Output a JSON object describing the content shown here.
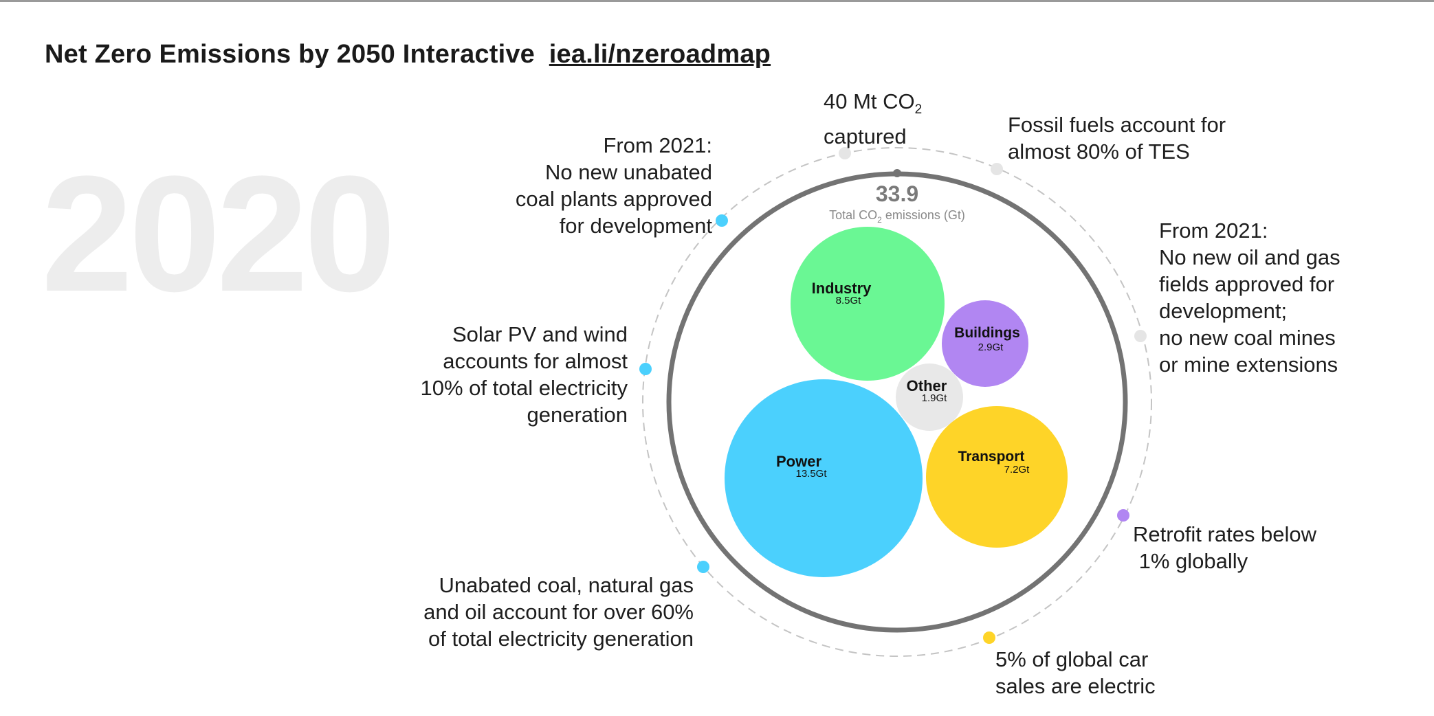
{
  "header": {
    "title": "Net Zero Emissions by 2050 Interactive",
    "link_text": "iea.li/nzeroadmap"
  },
  "year": "2020",
  "center": {
    "total_value": "33.9",
    "total_label_prefix": "Total CO",
    "total_label_sub": "2",
    "total_label_suffix": " emissions (Gt)"
  },
  "bubbles": [
    {
      "name": "Industry",
      "value_label": "8.5Gt",
      "value_gt": 8.5,
      "color": "#6af794"
    },
    {
      "name": "Buildings",
      "value_label": "2.9Gt",
      "value_gt": 2.9,
      "color": "#b186f2"
    },
    {
      "name": "Other",
      "value_label": "1.9Gt",
      "value_gt": 1.9,
      "color": "#e8e8e8"
    },
    {
      "name": "Power",
      "value_label": "13.5Gt",
      "value_gt": 13.5,
      "color": "#4bd0fd"
    },
    {
      "name": "Transport",
      "value_label": "7.2Gt",
      "value_gt": 7.2,
      "color": "#fed428"
    }
  ],
  "annotations": {
    "ccs": {
      "line1_prefix": "40 Mt CO",
      "line1_sub": "2",
      "line2": "captured",
      "dot_color": "#e5e5e5"
    },
    "fossil": {
      "lines": [
        "Fossil fuels account for",
        "almost 80% of TES"
      ],
      "dot_color": "#e5e5e5"
    },
    "coal_plants": {
      "lines": [
        "From 2021:",
        "No new unabated",
        "coal plants approved",
        "for development"
      ],
      "dot_color": "#4bd0fd"
    },
    "oil_gas": {
      "lines": [
        "From 2021:",
        "No new oil and gas",
        "fields approved for",
        "development;",
        "no new coal mines",
        "or mine extensions"
      ],
      "dot_color": "#e5e5e5"
    },
    "solar": {
      "lines": [
        "Solar PV and wind",
        "accounts for almost",
        "10% of total electricity",
        "generation"
      ],
      "dot_color": "#4bd0fd"
    },
    "retrofit": {
      "lines": [
        "Retrofit rates below",
        " 1% globally"
      ],
      "dot_color": "#b186f2"
    },
    "unabated": {
      "lines": [
        "Unabated coal, natural gas",
        "and oil account for over 60%",
        "of total electricity generation"
      ],
      "dot_color": "#4bd0fd"
    },
    "cars": {
      "lines": [
        "5% of global car",
        "sales are electric"
      ],
      "dot_color": "#fed428"
    }
  },
  "colors": {
    "ring": "#737373",
    "dashed_ring": "#c4c4c4",
    "year_watermark": "#ededed"
  }
}
